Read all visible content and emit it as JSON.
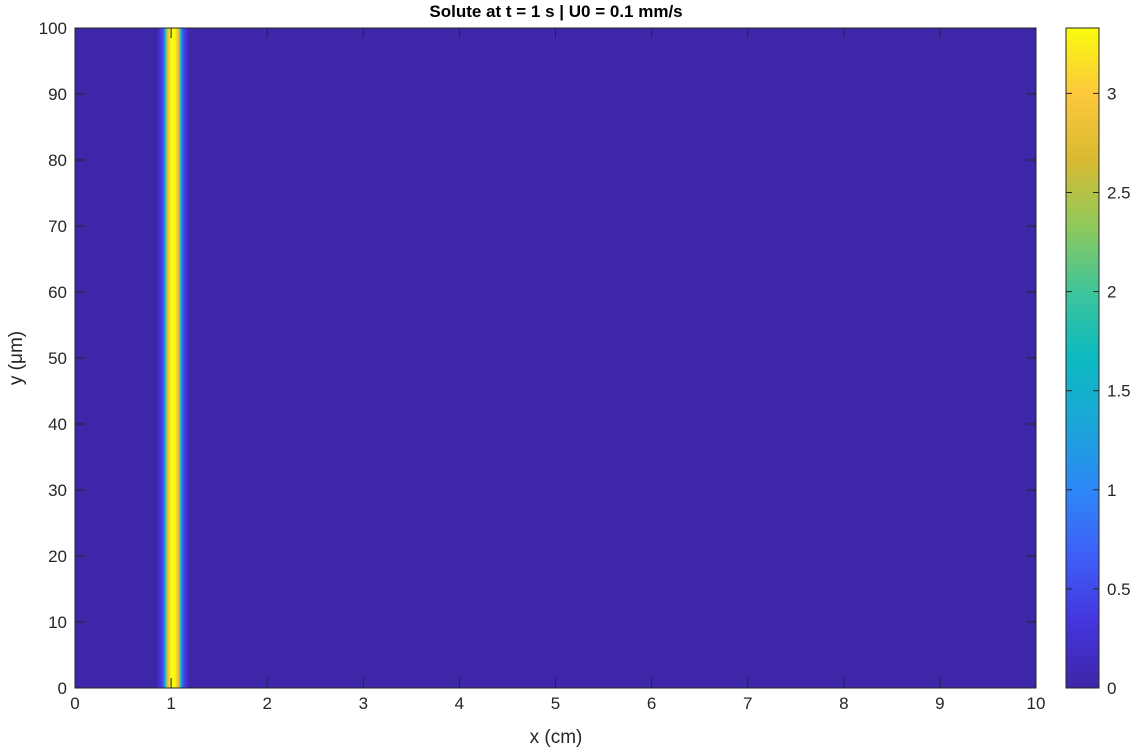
{
  "chart_data": {
    "type": "heatmap",
    "title": "Solute at t = 1 s | U0 = 0.1 mm/s",
    "xlabel": "x (cm)",
    "ylabel": "y (μm)",
    "xlim": [
      0,
      10
    ],
    "ylim": [
      0,
      100
    ],
    "x_ticks": [
      "0",
      "1",
      "2",
      "3",
      "4",
      "5",
      "6",
      "7",
      "8",
      "9",
      "10"
    ],
    "y_ticks": [
      "0",
      "10",
      "20",
      "30",
      "40",
      "50",
      "60",
      "70",
      "80",
      "90",
      "100"
    ],
    "colorbar": {
      "colormap": "parula",
      "clim": [
        0,
        3.33
      ],
      "ticks": [
        "0",
        "0.5",
        "1",
        "1.5",
        "2",
        "2.5",
        "3"
      ],
      "tick_values": [
        0,
        0.5,
        1,
        1.5,
        2,
        2.5,
        3
      ]
    },
    "grid": false,
    "field": {
      "description_of_profile": "uniform along y; concentration varies only with x",
      "profile_x": [
        0.0,
        0.85,
        0.92,
        0.96,
        1.0,
        1.04,
        1.08,
        1.12,
        1.19,
        10.0
      ],
      "profile_value": [
        0.0,
        0.0,
        0.6,
        2.7,
        3.33,
        3.33,
        2.7,
        0.6,
        0.0,
        0.0
      ]
    }
  },
  "colors": {
    "background": "#3e26a8",
    "axis": "#262626",
    "peak": "#f9fb0e"
  }
}
